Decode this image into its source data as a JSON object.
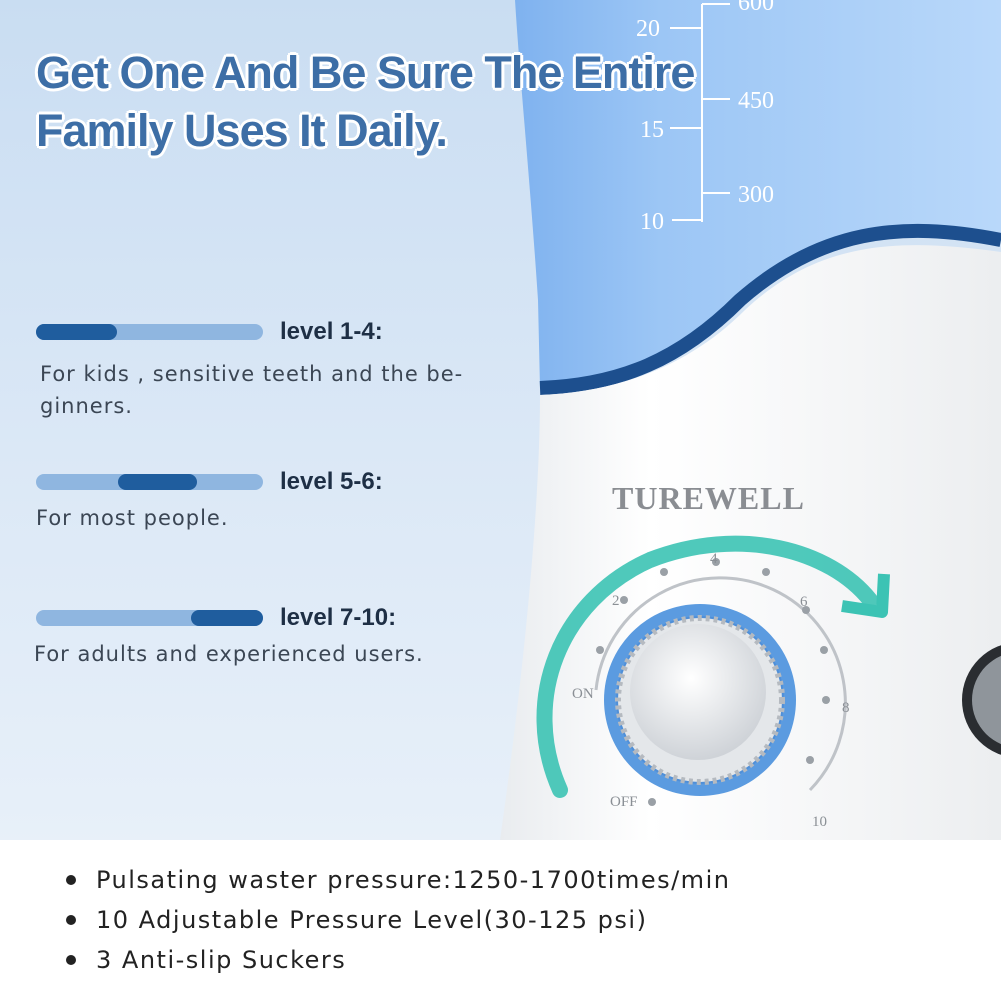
{
  "headline": {
    "line1": "Get One And Be Sure The Entire",
    "line2": "Family Uses It Daily."
  },
  "levels": [
    {
      "title": "level 1-4:",
      "description": "For kids , sensitive teeth and the be-ginners.",
      "fill_range": [
        0,
        0.36
      ]
    },
    {
      "title": "level 5-6:",
      "description": "For most people.",
      "fill_range": [
        0.36,
        0.71
      ]
    },
    {
      "title": "level 7-10:",
      "description": "For adults and experienced users.",
      "fill_range": [
        0.68,
        1
      ]
    }
  ],
  "tank_scale": {
    "left": [
      "20",
      "15",
      "10"
    ],
    "right": [
      "600",
      "450",
      "300"
    ]
  },
  "brand": "TUREWELL",
  "dial": {
    "labels": [
      "ON",
      "2",
      "4",
      "6",
      "8",
      "10",
      "OFF"
    ]
  },
  "features": [
    "Pulsating waster pressure:1250-1700times/min",
    "10 Adjustable Pressure Level(30-125 psi)",
    "3 Anti-slip Suckers"
  ],
  "colors": {
    "accent": "#1f5d9e",
    "bar_light": "#8fb6e0",
    "headline": "#3d6ea6",
    "arrow": "#3cc3b4",
    "dial_ring": "#5b9be0"
  }
}
